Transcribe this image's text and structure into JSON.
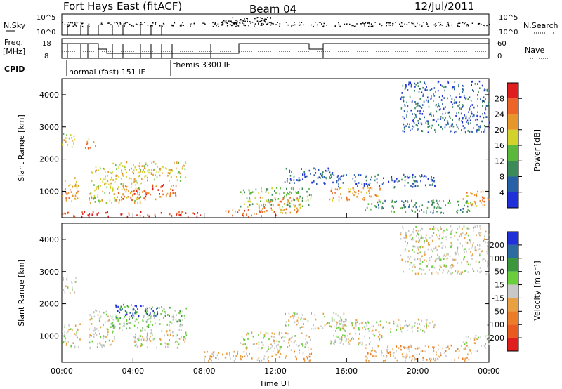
{
  "header": {
    "station": "Fort Hays East (fitACF)",
    "beam": "Beam 04",
    "date": "12/Jul/2011"
  },
  "status_panels": {
    "nsky_label": "N.Sky",
    "nsearch_label": "N.Search",
    "freq_label_1": "Freq.",
    "freq_label_2": "[MHz]",
    "nave_label": "Nave",
    "cpid_label": "CPID",
    "noise_ticks_left": [
      "10^5",
      "10^0"
    ],
    "noise_ticks_right": [
      "10^5",
      "10^0"
    ],
    "freq_ticks": [
      "18",
      "8"
    ],
    "nave_ticks": [
      "60",
      "0"
    ],
    "cpid_modes": [
      {
        "label": "normal (fast) 151 IF",
        "start_hour": 0.0
      },
      {
        "label": "themis 3300 IF",
        "start_hour": 6.0
      }
    ]
  },
  "chart_data": [
    {
      "type": "heatmap",
      "name": "power",
      "ylabel": "Slant Range [km]",
      "ylim": [
        180,
        4500
      ],
      "yticks": [
        1000,
        2000,
        3000,
        4000
      ],
      "xlim": [
        0,
        24
      ],
      "xticks": [
        "00:00",
        "04:00",
        "08:00",
        "12:00",
        "16:00",
        "20:00",
        "00:00"
      ],
      "colorbar": {
        "label": "Power [dB]",
        "ticks": [
          "4",
          "8",
          "12",
          "16",
          "20",
          "24",
          "28"
        ],
        "colors": [
          "#2030d8",
          "#2860a8",
          "#3c8a5a",
          "#5ab83c",
          "#d2d22a",
          "#e6962a",
          "#ec6428",
          "#e01e1e"
        ]
      },
      "scatter_echo_regions": [
        {
          "t0": 0.0,
          "t1": 0.9,
          "r0": 600,
          "r1": 1400,
          "level": 5
        },
        {
          "t0": 0.0,
          "t1": 0.8,
          "r0": 2300,
          "r1": 2800,
          "level": 4
        },
        {
          "t0": 1.2,
          "t1": 2.0,
          "r0": 2300,
          "r1": 2600,
          "level": 5
        },
        {
          "t0": 1.5,
          "t1": 2.8,
          "r0": 600,
          "r1": 1800,
          "level": 4
        },
        {
          "t0": 2.8,
          "t1": 4.5,
          "r0": 600,
          "r1": 1900,
          "level": 4
        },
        {
          "t0": 3.0,
          "t1": 4.8,
          "r0": 700,
          "r1": 1100,
          "level": 6
        },
        {
          "t0": 4.5,
          "t1": 7.0,
          "r0": 1300,
          "r1": 1900,
          "level": 4
        },
        {
          "t0": 4.5,
          "t1": 6.5,
          "r0": 700,
          "r1": 1200,
          "level": 6
        },
        {
          "t0": 0.0,
          "t1": 8.0,
          "r0": 200,
          "r1": 350,
          "level": 7
        },
        {
          "t0": 9.0,
          "t1": 12.0,
          "r0": 200,
          "r1": 400,
          "level": 6
        },
        {
          "t0": 10.0,
          "t1": 14.0,
          "r0": 500,
          "r1": 1100,
          "level": 3
        },
        {
          "t0": 11.0,
          "t1": 13.5,
          "r0": 300,
          "r1": 800,
          "level": 5
        },
        {
          "t0": 12.5,
          "t1": 15.5,
          "r0": 1200,
          "r1": 1700,
          "level": 1
        },
        {
          "t0": 15.0,
          "t1": 18.0,
          "r0": 700,
          "r1": 1100,
          "level": 5
        },
        {
          "t0": 15.0,
          "t1": 21.0,
          "r0": 1100,
          "r1": 1500,
          "level": 1
        },
        {
          "t0": 17.0,
          "t1": 23.0,
          "r0": 300,
          "r1": 700,
          "level": 2
        },
        {
          "t0": 22.5,
          "t1": 24.0,
          "r0": 500,
          "r1": 1000,
          "level": 5
        },
        {
          "t0": 19.0,
          "t1": 24.0,
          "r0": 2800,
          "r1": 4400,
          "level": 1
        }
      ]
    },
    {
      "type": "heatmap",
      "name": "velocity",
      "ylabel": "Slant Range [km]",
      "ylim": [
        180,
        4500
      ],
      "yticks": [
        1000,
        2000,
        3000,
        4000
      ],
      "xlim": [
        0,
        24
      ],
      "xticks": [
        "00:00",
        "04:00",
        "08:00",
        "12:00",
        "16:00",
        "20:00",
        "00:00"
      ],
      "xlabel": "Time UT",
      "colorbar": {
        "label": "Velocity [m s⁻¹]",
        "ticks": [
          "200",
          "100",
          "50",
          "15",
          "-15",
          "-50",
          "-100",
          "-200"
        ],
        "colors": [
          "#2030d8",
          "#2c6aa0",
          "#3c963c",
          "#6acd3c",
          "#c8c8c8",
          "#e8a040",
          "#ec7d28",
          "#e85a1e",
          "#e01e1e"
        ]
      },
      "scatter_echo_regions": [
        {
          "t0": 0.0,
          "t1": 1.0,
          "r0": 600,
          "r1": 1400,
          "level": 4
        },
        {
          "t0": 0.0,
          "t1": 0.8,
          "r0": 2300,
          "r1": 2800,
          "level": 4
        },
        {
          "t0": 1.5,
          "t1": 3.0,
          "r0": 600,
          "r1": 1800,
          "level": 4
        },
        {
          "t0": 3.0,
          "t1": 4.2,
          "r0": 1500,
          "r1": 2000,
          "level": 2
        },
        {
          "t0": 3.0,
          "t1": 5.5,
          "r0": 1600,
          "r1": 1950,
          "level": 0
        },
        {
          "t0": 2.8,
          "t1": 5.0,
          "r0": 1100,
          "r1": 1600,
          "level": 3
        },
        {
          "t0": 4.5,
          "t1": 7.0,
          "r0": 1300,
          "r1": 1900,
          "level": 3
        },
        {
          "t0": 4.0,
          "t1": 7.0,
          "r0": 600,
          "r1": 1200,
          "level": 4
        },
        {
          "t0": 8.0,
          "t1": 14.0,
          "r0": 200,
          "r1": 500,
          "level": 5
        },
        {
          "t0": 10.0,
          "t1": 14.0,
          "r0": 500,
          "r1": 1100,
          "level": 4
        },
        {
          "t0": 12.5,
          "t1": 16.0,
          "r0": 1200,
          "r1": 1700,
          "level": 4
        },
        {
          "t0": 15.0,
          "t1": 21.0,
          "r0": 1100,
          "r1": 1500,
          "level": 4
        },
        {
          "t0": 15.0,
          "t1": 18.0,
          "r0": 700,
          "r1": 1100,
          "level": 4
        },
        {
          "t0": 17.0,
          "t1": 23.0,
          "r0": 200,
          "r1": 700,
          "level": 5
        },
        {
          "t0": 22.5,
          "t1": 24.0,
          "r0": 500,
          "r1": 1000,
          "level": 4
        },
        {
          "t0": 19.0,
          "t1": 24.0,
          "r0": 2900,
          "r1": 4400,
          "level": 4
        }
      ]
    }
  ]
}
